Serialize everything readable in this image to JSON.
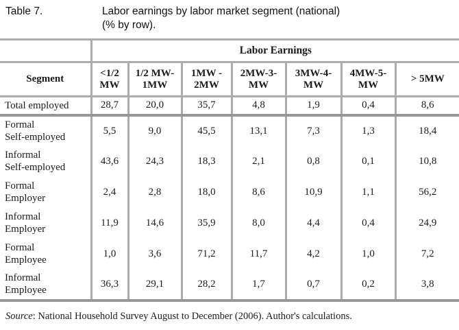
{
  "caption": {
    "label": "Table 7.",
    "text": "Labor earnings by labor market segment (national)\n(% by row)."
  },
  "table": {
    "group_header": "Labor Earnings",
    "segment_header": "Segment",
    "columns": [
      "<1/2\nMW",
      "1/2 MW-\n1MW",
      "1MW -\n2MW",
      "2MW-3-\nMW",
      "3MW-4-\nMW",
      "4MW-5-\nMW",
      "> 5MW"
    ],
    "rows": [
      {
        "label": "Total employed",
        "values": [
          "28,7",
          "20,0",
          "35,7",
          "4,8",
          "1,9",
          "0,4",
          "8,6"
        ]
      },
      {
        "label": "Formal\nSelf-employed",
        "values": [
          "5,5",
          "9,0",
          "45,5",
          "13,1",
          "7,3",
          "1,3",
          "18,4"
        ]
      },
      {
        "label": "Informal\nSelf-employed",
        "values": [
          "43,6",
          "24,3",
          "18,3",
          "2,1",
          "0,8",
          "0,1",
          "10,8"
        ]
      },
      {
        "label": "Formal\nEmployer",
        "values": [
          "2,4",
          "2,8",
          "18,0",
          "8,6",
          "10,9",
          "1,1",
          "56,2"
        ]
      },
      {
        "label": "Informal\nEmployer",
        "values": [
          "11,9",
          "14,6",
          "35,9",
          "8,0",
          "4,4",
          "0,4",
          "24,9"
        ]
      },
      {
        "label": "Formal\nEmployee",
        "values": [
          "1,0",
          "3,6",
          "71,2",
          "11,7",
          "4,2",
          "1,0",
          "7,2"
        ]
      },
      {
        "label": "Informal\nEmployee",
        "values": [
          "36,3",
          "29,1",
          "28,2",
          "1,7",
          "0,7",
          "0,2",
          "3,8"
        ]
      }
    ]
  },
  "source": {
    "label": "Source",
    "text": ": National Household Survey August to December (2006). Author's calculations."
  },
  "colors": {
    "border": "#acacac",
    "border_strong": "#979797",
    "text": "#1b1b1b",
    "background": "#ffffff"
  }
}
